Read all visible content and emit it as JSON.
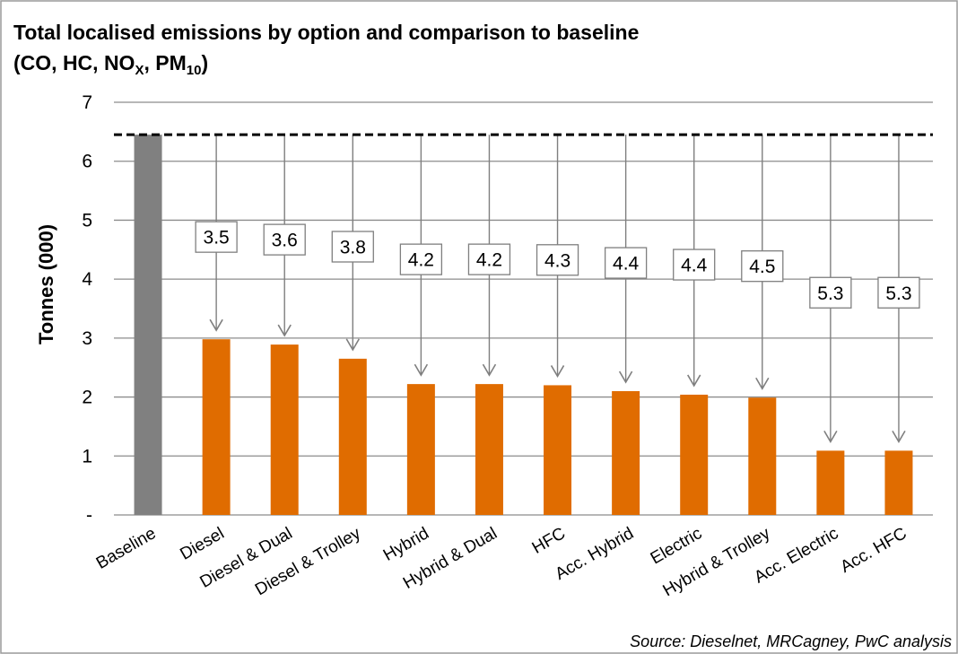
{
  "chart_data": {
    "type": "bar",
    "title_line1": "Total localised emissions by option and comparison to baseline",
    "title_line2": {
      "prefix": "(CO, HC, NO",
      "sub1": "X",
      "mid": ", PM",
      "sub2": "10",
      "suffix": ")"
    },
    "ylabel": "Tonnes (000)",
    "xlabel": "",
    "ylim": [
      0,
      7
    ],
    "yticks": [
      0,
      1,
      2,
      3,
      4,
      5,
      6,
      7
    ],
    "ytick_labels": [
      "-",
      "1",
      "2",
      "3",
      "4",
      "5",
      "6",
      "7"
    ],
    "baseline_value": 6.45,
    "categories": [
      "Baseline",
      "Diesel",
      "Diesel & Dual",
      "Diesel & Trolley",
      "Hybrid",
      "Hybrid & Dual",
      "HFC",
      "Acc. Hybrid",
      "Electric",
      "Hybrid & Trolley",
      "Acc. Electric",
      "Acc. HFC"
    ],
    "values": [
      6.45,
      2.98,
      2.89,
      2.65,
      2.22,
      2.22,
      2.2,
      2.1,
      2.04,
      1.99,
      1.09,
      1.09
    ],
    "reductions": [
      null,
      "3.5",
      "3.6",
      "3.8",
      "4.2",
      "4.2",
      "4.3",
      "4.4",
      "4.4",
      "4.5",
      "5.3",
      "5.3"
    ],
    "grid": true,
    "colors": {
      "baseline": "#808080",
      "option": "#e06c00",
      "grid": "#8c8c8c",
      "arrow": "#7f7f7f",
      "dashed": "#000000"
    }
  },
  "source": "Source: Dieselnet, MRCagney, PwC analysis"
}
